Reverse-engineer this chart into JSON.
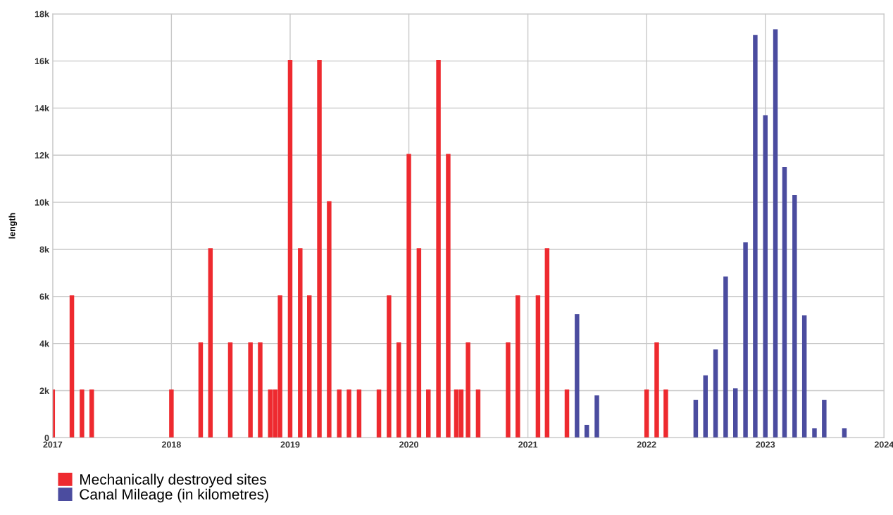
{
  "chart_data": {
    "type": "bar",
    "ylabel": "length",
    "series": [
      {
        "name": "Mechanically destroyed sites",
        "color": "#ee2a2f",
        "x": [
          "2017-01-01",
          "2017-03-01",
          "2017-04-01",
          "2017-05-01",
          "2018-01-01",
          "2018-04-01",
          "2018-05-01",
          "2018-07-01",
          "2018-09-01",
          "2018-10-01",
          "2018-11-01",
          "2018-11-16",
          "2018-12-01",
          "2019-01-01",
          "2019-02-01",
          "2019-03-01",
          "2019-04-01",
          "2019-05-01",
          "2019-06-01",
          "2019-07-01",
          "2019-08-01",
          "2019-10-01",
          "2019-11-01",
          "2019-12-01",
          "2020-01-01",
          "2020-02-01",
          "2020-03-01",
          "2020-04-01",
          "2020-05-01",
          "2020-05-26",
          "2020-06-10",
          "2020-07-01",
          "2020-08-01",
          "2020-11-01",
          "2020-12-01",
          "2021-02-01",
          "2021-03-01",
          "2021-05-01",
          "2022-01-01",
          "2022-02-01",
          "2022-03-01"
        ],
        "values": [
          2050,
          6050,
          2050,
          2050,
          2050,
          4050,
          8050,
          4050,
          4050,
          4050,
          2050,
          2050,
          6050,
          16050,
          8050,
          6050,
          16050,
          10050,
          2050,
          2050,
          2050,
          2050,
          6050,
          4050,
          12050,
          8050,
          2050,
          16050,
          12050,
          2050,
          2050,
          4050,
          2050,
          4050,
          6050,
          6050,
          8050,
          2050,
          2050,
          4050,
          2050
        ]
      },
      {
        "name": "Canal Mileage (in kilometres)",
        "color": "#4b4c9f",
        "x": [
          "2021-06-01",
          "2021-07-01",
          "2021-08-01",
          "2022-06-01",
          "2022-07-01",
          "2022-08-01",
          "2022-09-01",
          "2022-10-01",
          "2022-11-01",
          "2022-12-01",
          "2023-01-01",
          "2023-02-01",
          "2023-03-01",
          "2023-04-01",
          "2023-05-01",
          "2023-06-01",
          "2023-07-01",
          "2023-09-01"
        ],
        "values": [
          5250,
          550,
          1800,
          1600,
          2650,
          3750,
          6850,
          2100,
          8300,
          17100,
          13700,
          17350,
          11500,
          10300,
          5200,
          400,
          1600,
          400
        ]
      }
    ],
    "xlim": [
      "2017-01-01",
      "2024-01-01"
    ],
    "xticks": [
      {
        "value": "2017-01-01",
        "label": "2017"
      },
      {
        "value": "2018-01-01",
        "label": "2018"
      },
      {
        "value": "2019-01-01",
        "label": "2019"
      },
      {
        "value": "2020-01-01",
        "label": "2020"
      },
      {
        "value": "2021-01-01",
        "label": "2021"
      },
      {
        "value": "2022-01-01",
        "label": "2022"
      },
      {
        "value": "2023-01-01",
        "label": "2023"
      },
      {
        "value": "2024-01-01",
        "label": "2024"
      }
    ],
    "ylim": [
      0,
      18000
    ],
    "yticks": [
      0,
      {
        "value": 2000,
        "label": "2k"
      },
      {
        "value": 4000,
        "label": "4k"
      },
      {
        "value": 6000,
        "label": "6k"
      },
      {
        "value": 8000,
        "label": "8k"
      },
      {
        "value": 10000,
        "label": "10k"
      },
      {
        "value": 12000,
        "label": "12k"
      },
      {
        "value": 14000,
        "label": "14k"
      },
      {
        "value": 16000,
        "label": "16k"
      },
      {
        "value": 18000,
        "label": "18k"
      }
    ],
    "grid": true,
    "legend": "bottom left"
  }
}
